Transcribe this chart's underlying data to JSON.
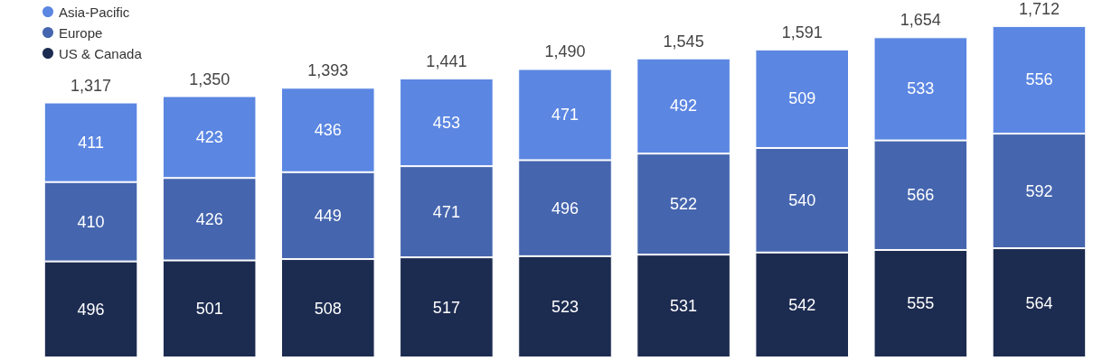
{
  "chart_data": {
    "type": "bar",
    "stacked": true,
    "categories": [
      null,
      null,
      null,
      null,
      null,
      null,
      null,
      null,
      null
    ],
    "series": [
      {
        "name": "US & Canada",
        "color": "#1c2b50",
        "values": [
          496,
          501,
          508,
          517,
          523,
          531,
          542,
          555,
          564
        ]
      },
      {
        "name": "Europe",
        "color": "#4565ae",
        "values": [
          410,
          426,
          449,
          471,
          496,
          522,
          540,
          566,
          592
        ]
      },
      {
        "name": "Asia-Pacific",
        "color": "#5b86e2",
        "values": [
          411,
          423,
          436,
          453,
          471,
          492,
          509,
          533,
          556
        ]
      }
    ],
    "totals": [
      "1,317",
      "1,350",
      "1,393",
      "1,441",
      "1,490",
      "1,545",
      "1,591",
      "1,654",
      "1,712"
    ],
    "tick_labels": false,
    "grid": false,
    "legend": "top left",
    "data_labels": true
  }
}
